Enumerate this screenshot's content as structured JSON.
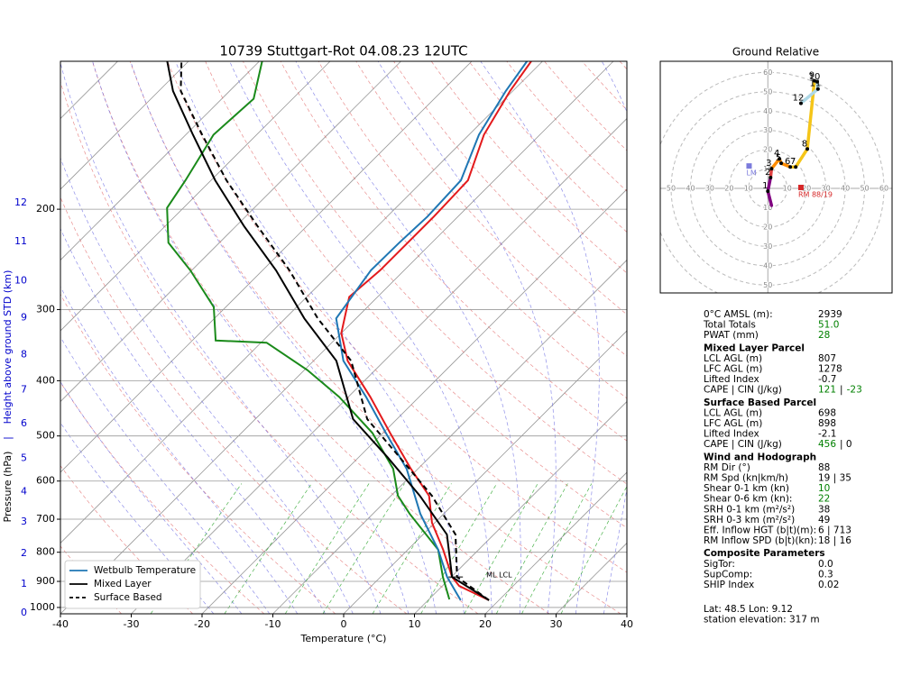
{
  "chart_data": [
    {
      "type": "skewt",
      "title": "10739 Stuttgart-Rot 04.08.23 12UTC",
      "xlabel": "Temperature (°C)",
      "ylabel": "Pressure (hPa)",
      "separator": "|",
      "y2label": "Height above ground STD (km)",
      "xlim": [
        -40,
        40
      ],
      "xticks": [
        -40,
        -30,
        -20,
        -10,
        0,
        10,
        20,
        30,
        40
      ],
      "ylim": [
        1026,
        110
      ],
      "yticks": [
        1000,
        900,
        800,
        700,
        600,
        500,
        400,
        300,
        200
      ],
      "log_y": true,
      "grid": true,
      "height_km": [
        0,
        1,
        2,
        3,
        4,
        5,
        6,
        7,
        8,
        9,
        10,
        11,
        12
      ],
      "height_pressure": [
        1023,
        910,
        804,
        708,
        626,
        547,
        476,
        415,
        360,
        310,
        267,
        228,
        195
      ],
      "height_color": "#0000cc",
      "legend": "lower left",
      "series": [
        {
          "color": "#e31a1c",
          "pressure": [
            971,
            917,
            884,
            792,
            710,
            637,
            571,
            494,
            427,
            369,
            330,
            285,
            256,
            229,
            206,
            178,
            148,
            124,
            110
          ],
          "values": [
            18.6,
            12.4,
            10.1,
            5.0,
            -0.4,
            -4.6,
            -11,
            -19,
            -26.9,
            -35.2,
            -40,
            -44,
            -43.4,
            -43.4,
            -43.4,
            -43.7,
            -47.9,
            -50.4,
            -51.6
          ]
        },
        {
          "color": "#1a8a1a",
          "pressure": [
            968,
            884,
            792,
            685,
            637,
            571,
            494,
            427,
            383,
            343,
            340,
            297,
            256,
            229,
            199,
            178,
            148,
            128,
            110
          ],
          "values": [
            12.9,
            8.8,
            4.3,
            -4.8,
            -9,
            -13.5,
            -21.5,
            -31.3,
            -39.6,
            -49.2,
            -56.7,
            -61.7,
            -70.2,
            -77.2,
            -82.3,
            -83.6,
            -86.1,
            -85.5,
            -89.6
          ]
        },
        {
          "name": "Wetbulb Temperature",
          "color": "#1f77b4",
          "pressure": [
            971,
            884,
            792,
            685,
            571,
            494,
            427,
            369,
            311,
            256,
            229,
            206,
            178,
            148,
            124,
            110
          ],
          "values": [
            14.6,
            9.4,
            4.3,
            -3.3,
            -11.6,
            -19.6,
            -27.5,
            -35.8,
            -42.8,
            -44.7,
            -44.6,
            -44.3,
            -44.7,
            -48.6,
            -51,
            -52.2
          ]
        },
        {
          "name": "Mixed Layer",
          "color": "#000000",
          "pressure": [
            971,
            884,
            745,
            637,
            546,
            467,
            369,
            311,
            256,
            214,
            178,
            148,
            124,
            110
          ],
          "values": [
            18.6,
            10.1,
            3.4,
            -5.9,
            -15.8,
            -26.2,
            -36.8,
            -47.3,
            -58.1,
            -68.9,
            -79.4,
            -89,
            -98,
            -103
          ]
        },
        {
          "name": "Surface Based",
          "color": "#000000",
          "dash": true,
          "pressure": [
            971,
            884,
            745,
            637,
            546,
            467,
            369,
            311,
            256,
            214,
            178,
            148,
            124,
            110
          ],
          "values": [
            18.6,
            10.8,
            4.6,
            -4.2,
            -14.1,
            -24.2,
            -34.7,
            -45.4,
            -56.2,
            -67,
            -77.8,
            -87.7,
            -96.9,
            -101
          ]
        }
      ],
      "annotation": {
        "text": "ML LCL",
        "pressure": 884,
        "temperature": 10.1
      }
    },
    {
      "type": "hodograph",
      "title": "Ground Relative",
      "xlim": [
        -55.6,
        64.2
      ],
      "ylim": [
        -54,
        65.7
      ],
      "rings": [
        10,
        20,
        30,
        40,
        50,
        60
      ],
      "x": [
        1.9,
        0,
        1.4,
        1.9,
        6,
        6.9,
        11.6,
        14.4,
        20.4,
        24.1,
        25.5,
        25.9,
        17.1
      ],
      "values": [
        -8.8,
        -1.4,
        5.6,
        10.2,
        15.3,
        13,
        11.1,
        11.1,
        20.4,
        55.6,
        55.1,
        51.4,
        44
      ],
      "labels": [
        null,
        1,
        2,
        3,
        4,
        5,
        6,
        7,
        8,
        9,
        10,
        11,
        12
      ],
      "segment_colors": [
        "#800080",
        "#800080",
        "#e04040",
        "#ff8c00",
        "#ff8c00",
        "#ff8c00",
        "#f5c518",
        "#f5c518",
        "#f5c518",
        "#add8e6",
        "#add8e6",
        "#add8e6"
      ],
      "storm_motions": [
        {
          "label": "RM 88/19",
          "u": 17.1,
          "v": 0.5,
          "color": "#d62728"
        },
        {
          "label": "LM",
          "u": -9.7,
          "v": 11.6,
          "color": "#7b7bdc"
        }
      ]
    }
  ],
  "info_panel": {
    "rows": [
      {
        "label": "0°C AMSL (m):",
        "value": [
          {
            "text": "2939",
            "color": "#000000"
          }
        ]
      },
      {
        "label": "Total Totals",
        "value": [
          {
            "text": "51.0",
            "color": "#008000"
          }
        ]
      },
      {
        "label": "PWAT (mm)",
        "value": [
          {
            "text": "28",
            "color": "#008000"
          }
        ]
      },
      {
        "heading": "Mixed Layer Parcel"
      },
      {
        "label": "LCL AGL (m)",
        "value": [
          {
            "text": "807",
            "color": "#000000"
          }
        ]
      },
      {
        "label": "LFC AGL (m)",
        "value": [
          {
            "text": "1278",
            "color": "#000000"
          }
        ]
      },
      {
        "label": "Lifted Index",
        "value": [
          {
            "text": "-0.7",
            "color": "#000000"
          }
        ]
      },
      {
        "label": "CAPE | CIN (J/kg)",
        "value": [
          {
            "text": "121",
            "color": "#008000"
          },
          {
            "text": "|",
            "color": "#000000"
          },
          {
            "text": "-23",
            "color": "#008000"
          }
        ]
      },
      {
        "heading": "Surface Based Parcel"
      },
      {
        "label": "LCL AGL (m)",
        "value": [
          {
            "text": "698",
            "color": "#000000"
          }
        ]
      },
      {
        "label": "LFC AGL (m)",
        "value": [
          {
            "text": "898",
            "color": "#000000"
          }
        ]
      },
      {
        "label": "Lifted Index",
        "value": [
          {
            "text": "-2.1",
            "color": "#000000"
          }
        ]
      },
      {
        "label": "CAPE | CIN (J/kg)",
        "value": [
          {
            "text": "456",
            "color": "#008000"
          },
          {
            "text": "| 0",
            "color": "#000000"
          }
        ]
      },
      {
        "heading": "Wind and Hodograph"
      },
      {
        "label": "RM Dir (°)",
        "value": [
          {
            "text": "88",
            "color": "#000000"
          }
        ]
      },
      {
        "label": "RM Spd (kn|km/h)",
        "value": [
          {
            "text": "19 | 35",
            "color": "#000000"
          }
        ]
      },
      {
        "label": "Shear 0-1 km (kn)",
        "value": [
          {
            "text": "10",
            "color": "#008000"
          }
        ]
      },
      {
        "label": "Shear 0-6 km (kn):",
        "value": [
          {
            "text": "22",
            "color": "#008000"
          }
        ]
      },
      {
        "label": "SRH 0-1 km (m²/s²)",
        "value": [
          {
            "text": "38",
            "color": "#000000"
          }
        ]
      },
      {
        "label": "SRH 0-3 km (m²/s²)",
        "value": [
          {
            "text": "49",
            "color": "#000000"
          }
        ]
      },
      {
        "label": "Eff. Inflow HGT (b|t)(m):",
        "value": [
          {
            "text": "6 | 713",
            "color": "#000000"
          }
        ]
      },
      {
        "label": "RM Inflow SPD (b|t)(kn):",
        "value": [
          {
            "text": "18 | 16",
            "color": "#000000"
          }
        ]
      },
      {
        "heading": "Composite Parameters"
      },
      {
        "label": "SigTor:",
        "value": [
          {
            "text": "0.0",
            "color": "#000000"
          }
        ]
      },
      {
        "label": "SupComp:",
        "value": [
          {
            "text": "0.3",
            "color": "#000000"
          }
        ]
      },
      {
        "label": "SHIP Index",
        "value": [
          {
            "text": "0.02",
            "color": "#000000"
          }
        ]
      }
    ],
    "footer": [
      "Lat: 48.5  Lon: 9.12",
      "station elevation: 317 m"
    ]
  }
}
